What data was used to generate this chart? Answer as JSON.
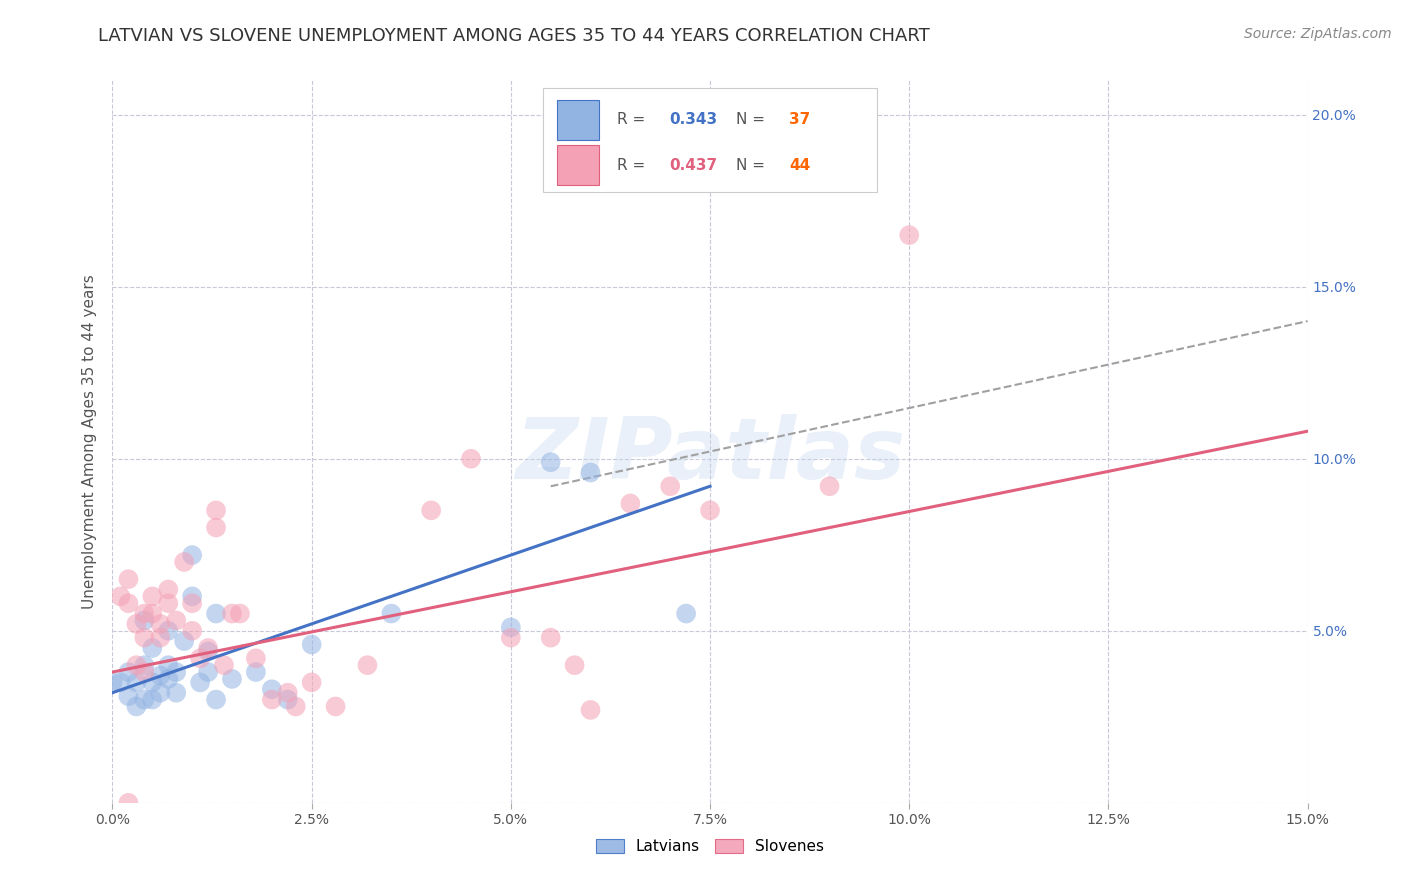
{
  "title": "LATVIAN VS SLOVENE UNEMPLOYMENT AMONG AGES 35 TO 44 YEARS CORRELATION CHART",
  "source": "Source: ZipAtlas.com",
  "ylabel": "Unemployment Among Ages 35 to 44 years",
  "xlim": [
    0.0,
    0.15
  ],
  "ylim": [
    0.0,
    0.21
  ],
  "legend1_r": "0.343",
  "legend1_n": "37",
  "legend2_r": "0.437",
  "legend2_n": "44",
  "latvian_color": "#92b4e3",
  "slovene_color": "#f4a0b5",
  "latvian_line_color": "#4472c4",
  "slovene_line_color": "#e0607e",
  "trendline_dashed_color": "#a0a0a0",
  "background_color": "#ffffff",
  "grid_color": "#c8c8d8",
  "watermark": "ZIPatlas",
  "latvians_scatter": [
    [
      0.001,
      0.035
    ],
    [
      0.002,
      0.031
    ],
    [
      0.002,
      0.038
    ],
    [
      0.003,
      0.028
    ],
    [
      0.003,
      0.035
    ],
    [
      0.004,
      0.03
    ],
    [
      0.004,
      0.04
    ],
    [
      0.004,
      0.053
    ],
    [
      0.005,
      0.03
    ],
    [
      0.005,
      0.035
    ],
    [
      0.005,
      0.045
    ],
    [
      0.006,
      0.032
    ],
    [
      0.006,
      0.037
    ],
    [
      0.007,
      0.036
    ],
    [
      0.007,
      0.04
    ],
    [
      0.007,
      0.05
    ],
    [
      0.008,
      0.032
    ],
    [
      0.008,
      0.038
    ],
    [
      0.009,
      0.047
    ],
    [
      0.01,
      0.06
    ],
    [
      0.01,
      0.072
    ],
    [
      0.011,
      0.035
    ],
    [
      0.012,
      0.038
    ],
    [
      0.012,
      0.044
    ],
    [
      0.013,
      0.03
    ],
    [
      0.013,
      0.055
    ],
    [
      0.015,
      0.036
    ],
    [
      0.018,
      0.038
    ],
    [
      0.02,
      0.033
    ],
    [
      0.022,
      0.03
    ],
    [
      0.025,
      0.046
    ],
    [
      0.035,
      0.055
    ],
    [
      0.05,
      0.051
    ],
    [
      0.055,
      0.099
    ],
    [
      0.06,
      0.096
    ],
    [
      0.072,
      0.055
    ],
    [
      0.0,
      0.035
    ]
  ],
  "slovenes_scatter": [
    [
      0.001,
      0.06
    ],
    [
      0.002,
      0.058
    ],
    [
      0.002,
      0.065
    ],
    [
      0.003,
      0.04
    ],
    [
      0.003,
      0.052
    ],
    [
      0.004,
      0.038
    ],
    [
      0.004,
      0.048
    ],
    [
      0.004,
      0.055
    ],
    [
      0.005,
      0.055
    ],
    [
      0.005,
      0.06
    ],
    [
      0.006,
      0.048
    ],
    [
      0.006,
      0.052
    ],
    [
      0.007,
      0.058
    ],
    [
      0.007,
      0.062
    ],
    [
      0.008,
      0.053
    ],
    [
      0.009,
      0.07
    ],
    [
      0.01,
      0.05
    ],
    [
      0.01,
      0.058
    ],
    [
      0.011,
      0.042
    ],
    [
      0.012,
      0.045
    ],
    [
      0.013,
      0.08
    ],
    [
      0.013,
      0.085
    ],
    [
      0.014,
      0.04
    ],
    [
      0.015,
      0.055
    ],
    [
      0.016,
      0.055
    ],
    [
      0.018,
      0.042
    ],
    [
      0.02,
      0.03
    ],
    [
      0.022,
      0.032
    ],
    [
      0.023,
      0.028
    ],
    [
      0.025,
      0.035
    ],
    [
      0.028,
      0.028
    ],
    [
      0.032,
      0.04
    ],
    [
      0.04,
      0.085
    ],
    [
      0.045,
      0.1
    ],
    [
      0.05,
      0.048
    ],
    [
      0.055,
      0.048
    ],
    [
      0.058,
      0.04
    ],
    [
      0.06,
      0.027
    ],
    [
      0.065,
      0.087
    ],
    [
      0.07,
      0.092
    ],
    [
      0.075,
      0.085
    ],
    [
      0.09,
      0.092
    ],
    [
      0.1,
      0.165
    ],
    [
      0.002,
      0.0
    ]
  ],
  "latvian_trendline": [
    [
      0.0,
      0.032
    ],
    [
      0.075,
      0.092
    ]
  ],
  "slovene_trendline": [
    [
      0.0,
      0.038
    ],
    [
      0.15,
      0.108
    ]
  ],
  "dashed_trendline": [
    [
      0.055,
      0.092
    ],
    [
      0.15,
      0.14
    ]
  ],
  "scatter_size": 200,
  "scatter_alpha": 0.55,
  "title_fontsize": 13,
  "axis_label_fontsize": 11,
  "tick_fontsize": 10,
  "legend_fontsize": 11,
  "source_fontsize": 10,
  "legend_r_color_latvian": "#4472c4",
  "legend_r_color_slovene": "#e0607e",
  "legend_n_color": "#ff6600",
  "ytick_color": "#4472c4"
}
